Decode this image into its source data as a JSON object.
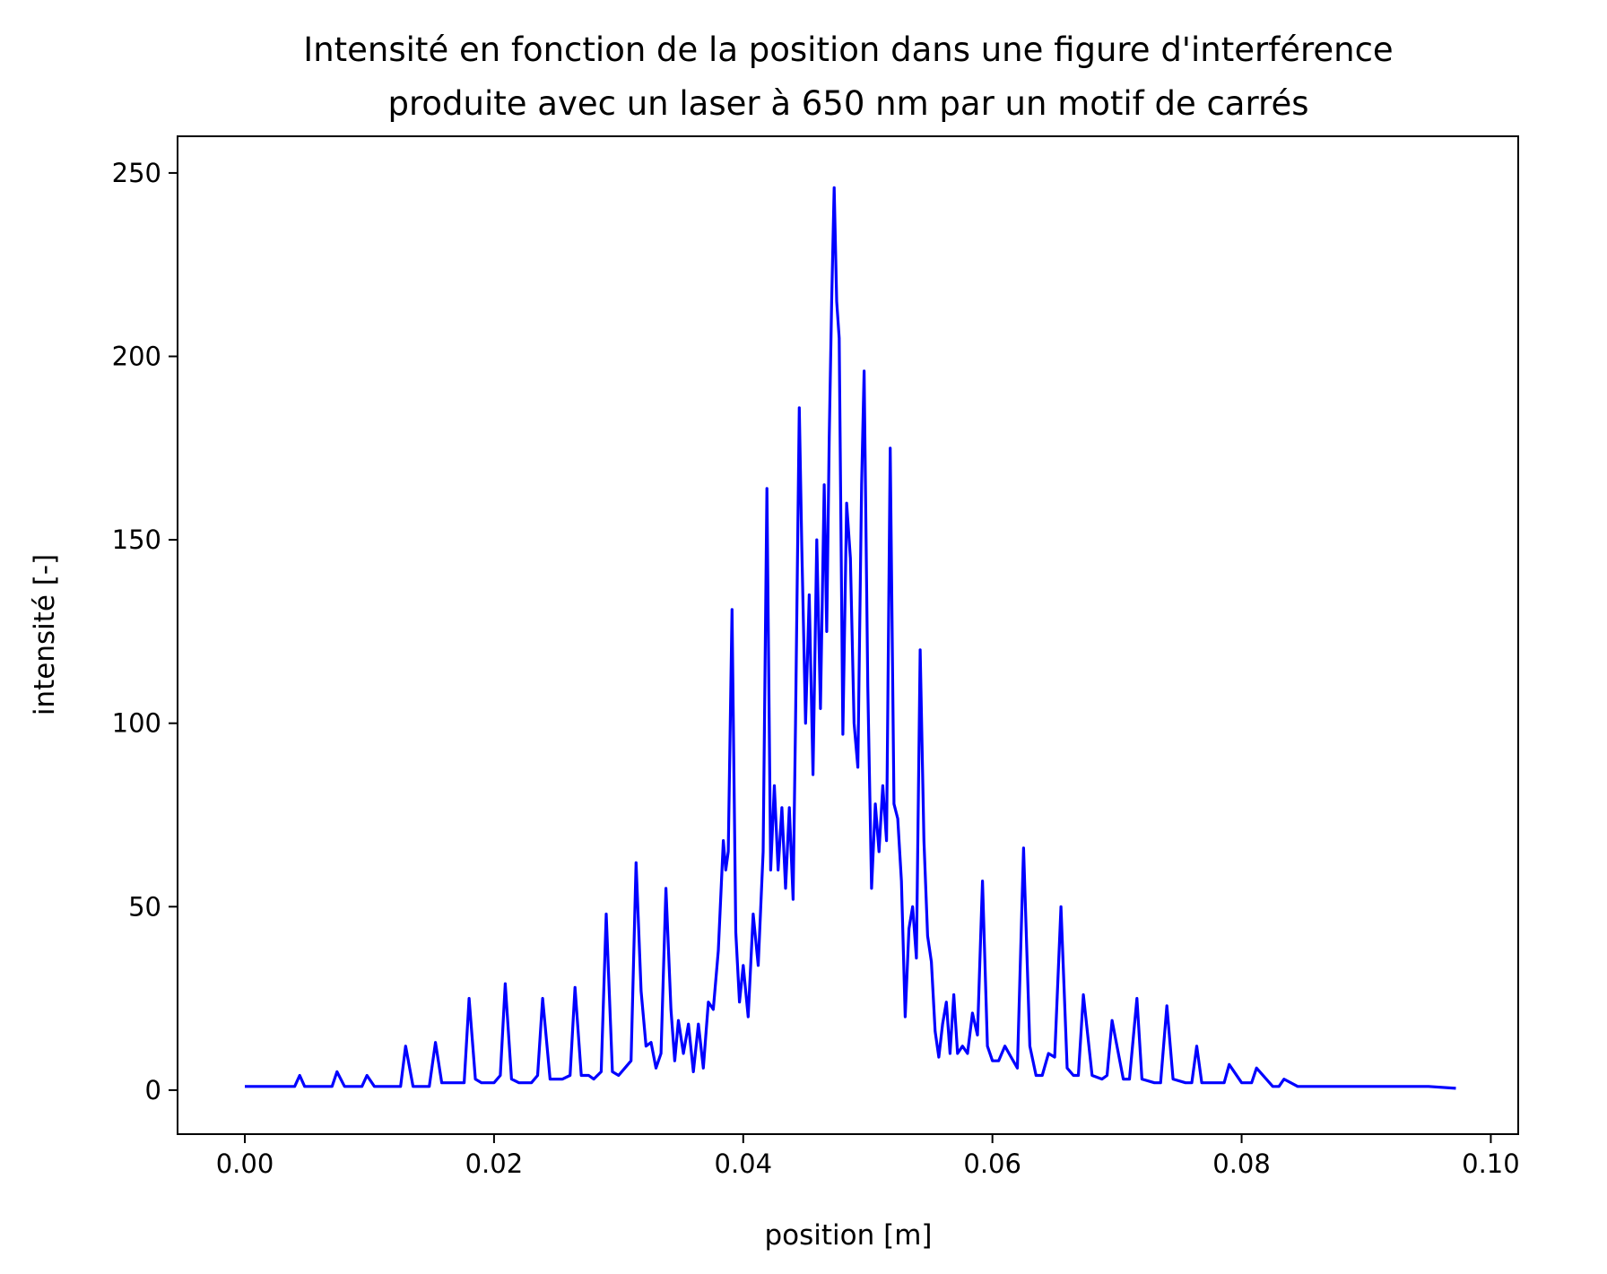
{
  "chart_data": {
    "type": "line",
    "title_lines": [
      "Intensité en fonction de la position dans une figure d'interférence",
      "produite avec un laser à 650 nm par un motif de carrés"
    ],
    "xlabel": "position [m]",
    "ylabel": "intensité [-]",
    "xlim": [
      -0.0054,
      0.1022
    ],
    "ylim": [
      -12,
      260
    ],
    "xticks": [
      0.0,
      0.02,
      0.04,
      0.06,
      0.08,
      0.1
    ],
    "xtick_labels": [
      "0.00",
      "0.02",
      "0.04",
      "0.06",
      "0.08",
      "0.10"
    ],
    "yticks": [
      0,
      50,
      100,
      150,
      200,
      250
    ],
    "ytick_labels": [
      "0",
      "50",
      "100",
      "150",
      "200",
      "250"
    ],
    "grid": false,
    "legend": "none",
    "series": [
      {
        "color": "#0000ff",
        "x": [
          0.0,
          0.002,
          0.004,
          0.0044,
          0.0048,
          0.006,
          0.007,
          0.0074,
          0.008,
          0.0094,
          0.0098,
          0.0104,
          0.0115,
          0.0125,
          0.0129,
          0.0135,
          0.0148,
          0.0153,
          0.0158,
          0.017,
          0.0176,
          0.018,
          0.0185,
          0.019,
          0.02,
          0.0205,
          0.0209,
          0.0214,
          0.022,
          0.023,
          0.0235,
          0.0239,
          0.0245,
          0.0255,
          0.0261,
          0.0265,
          0.027,
          0.0276,
          0.028,
          0.0286,
          0.029,
          0.0295,
          0.03,
          0.0305,
          0.031,
          0.0314,
          0.0318,
          0.0322,
          0.0326,
          0.033,
          0.0334,
          0.0338,
          0.0342,
          0.0345,
          0.0348,
          0.0352,
          0.0356,
          0.036,
          0.0364,
          0.0368,
          0.0372,
          0.0376,
          0.038,
          0.0384,
          0.0386,
          0.0388,
          0.0391,
          0.0394,
          0.0397,
          0.04,
          0.0404,
          0.0408,
          0.0412,
          0.0416,
          0.0419,
          0.0422,
          0.0425,
          0.0428,
          0.0431,
          0.0434,
          0.0437,
          0.044,
          0.0442,
          0.0445,
          0.0447,
          0.045,
          0.0453,
          0.0456,
          0.0459,
          0.0462,
          0.0465,
          0.0467,
          0.0469,
          0.0471,
          0.0473,
          0.0475,
          0.0477,
          0.048,
          0.0483,
          0.0486,
          0.0489,
          0.0492,
          0.0495,
          0.0497,
          0.05,
          0.0503,
          0.0506,
          0.0509,
          0.0512,
          0.0515,
          0.0518,
          0.0521,
          0.0524,
          0.0527,
          0.053,
          0.0533,
          0.0536,
          0.0539,
          0.0542,
          0.0545,
          0.0548,
          0.0551,
          0.0554,
          0.0557,
          0.056,
          0.0563,
          0.0566,
          0.0569,
          0.0572,
          0.0576,
          0.058,
          0.0584,
          0.0588,
          0.0592,
          0.0596,
          0.06,
          0.0605,
          0.061,
          0.0615,
          0.062,
          0.0625,
          0.063,
          0.0635,
          0.064,
          0.0645,
          0.065,
          0.0655,
          0.066,
          0.0665,
          0.0669,
          0.0673,
          0.068,
          0.0688,
          0.0692,
          0.0696,
          0.0705,
          0.071,
          0.0716,
          0.072,
          0.073,
          0.0735,
          0.074,
          0.0745,
          0.0755,
          0.076,
          0.0764,
          0.0768,
          0.078,
          0.0786,
          0.079,
          0.08,
          0.0808,
          0.0812,
          0.0825,
          0.083,
          0.0834,
          0.0845,
          0.0855,
          0.087,
          0.09,
          0.093,
          0.095,
          0.0972
        ],
        "y": [
          1,
          1,
          1,
          4,
          1,
          1,
          1,
          5,
          1,
          1,
          4,
          1,
          1,
          1,
          12,
          1,
          1,
          13,
          2,
          2,
          2,
          25,
          3,
          2,
          2,
          4,
          29,
          3,
          2,
          2,
          4,
          25,
          3,
          3,
          4,
          28,
          4,
          4,
          3,
          5,
          48,
          5,
          4,
          6,
          8,
          62,
          27,
          12,
          13,
          6,
          10,
          55,
          22,
          8,
          19,
          10,
          18,
          5,
          18,
          6,
          24,
          22,
          38,
          68,
          60,
          65,
          131,
          43,
          24,
          34,
          20,
          48,
          34,
          65,
          164,
          60,
          83,
          60,
          77,
          55,
          77,
          52,
          100,
          186,
          148,
          100,
          135,
          86,
          150,
          104,
          165,
          125,
          178,
          215,
          246,
          215,
          205,
          97,
          160,
          145,
          100,
          88,
          165,
          196,
          110,
          55,
          78,
          65,
          83,
          68,
          175,
          78,
          74,
          57,
          20,
          44,
          50,
          36,
          120,
          68,
          42,
          35,
          16,
          9,
          18,
          24,
          10,
          26,
          10,
          12,
          10,
          21,
          15,
          57,
          12,
          8,
          8,
          12,
          9,
          6,
          66,
          12,
          4,
          4,
          10,
          9,
          50,
          6,
          4,
          4,
          26,
          4,
          3,
          4,
          19,
          3,
          3,
          25,
          3,
          2,
          2,
          23,
          3,
          2,
          2,
          12,
          2,
          2,
          2,
          7,
          2,
          2,
          6,
          1,
          1,
          3,
          1,
          1,
          1,
          1,
          1,
          1,
          0.5
        ]
      }
    ]
  }
}
